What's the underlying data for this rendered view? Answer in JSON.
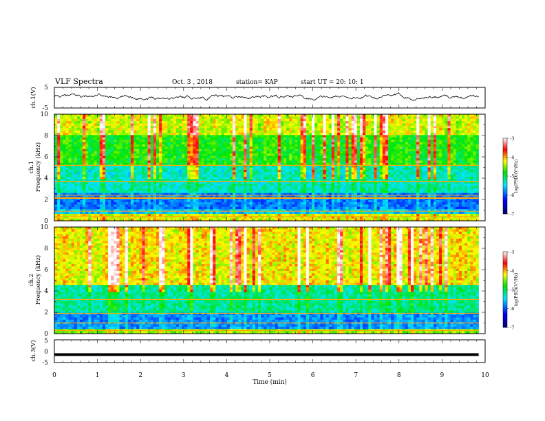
{
  "header": {
    "title": "VLF Spectra",
    "date": "Oct. 3 , 2018",
    "station": "station= KAP",
    "start": "start  UT =   20: 10: 1"
  },
  "chart_data": [
    {
      "type": "line",
      "panel": "ch1-waveform",
      "ylabel": "ch.1(V)",
      "ylim": [
        -5,
        5
      ],
      "yticks": [
        "5",
        "-5"
      ],
      "xlim": [
        0,
        10
      ],
      "description_values": {
        "baseline": 0.5,
        "range": [
          -2,
          2
        ]
      }
    },
    {
      "type": "heatmap",
      "panel": "ch1-spectrogram",
      "ylabel": "ch.1\nFrequency (kHz)",
      "ylim": [
        0,
        10
      ],
      "yticks": [
        "0",
        "2",
        "4",
        "6",
        "8",
        "10"
      ],
      "xlim": [
        0,
        10
      ],
      "data_end_min": 9.85,
      "colorbar": {
        "label": "log(PSD)(V²/Hz)",
        "range": [
          -7,
          -3
        ],
        "ticks": [
          "-3",
          "-4",
          "-5",
          "-6",
          "-7"
        ]
      },
      "levels_by_freq_khz": [
        {
          "f": [
            0,
            0.6
          ],
          "v": -4.3
        },
        {
          "f": [
            0.6,
            1.0
          ],
          "v": -5.6
        },
        {
          "f": [
            1.0,
            2.6
          ],
          "v": -5.9
        },
        {
          "f": [
            2.6,
            5.2
          ],
          "v": -5.3
        },
        {
          "f": [
            5.2,
            8.0
          ],
          "v": -4.8
        },
        {
          "f": [
            8.0,
            10
          ],
          "v": -4.3
        }
      ],
      "lines_khz": [
        0.4,
        0.9,
        2.1,
        2.2,
        2.4,
        3.7,
        5.2
      ]
    },
    {
      "type": "heatmap",
      "panel": "ch2-spectrogram",
      "ylabel": "ch.2\nFrequency (kHz)",
      "ylim": [
        0,
        10
      ],
      "yticks": [
        "0",
        "2",
        "4",
        "6",
        "8",
        "10"
      ],
      "xlim": [
        0,
        10
      ],
      "data_end_min": 9.85,
      "colorbar": {
        "label": "log(PSD)(V²/Hz)",
        "range": [
          -7,
          -3
        ],
        "ticks": [
          "-3",
          "-4",
          "-5",
          "-6",
          "-7"
        ]
      },
      "levels_by_freq_khz": [
        {
          "f": [
            0,
            0.4
          ],
          "v": -4.5
        },
        {
          "f": [
            0.4,
            2.0
          ],
          "v": -5.8
        },
        {
          "f": [
            2.0,
            4.5
          ],
          "v": -5.2
        },
        {
          "f": [
            4.5,
            10
          ],
          "v": -4.2
        }
      ],
      "lines_khz": [
        0.3,
        1.0,
        1.9,
        3.2
      ]
    },
    {
      "type": "line",
      "panel": "ch3-waveform",
      "ylabel": "ch.3(V)",
      "ylim": [
        -5,
        5
      ],
      "yticks": [
        "5",
        "0",
        "-5"
      ],
      "xlim": [
        0,
        10
      ],
      "values_constant": -1.5
    }
  ],
  "xaxis": {
    "label": "Time  (min)",
    "ticks": [
      "0",
      "1",
      "2",
      "3",
      "4",
      "5",
      "6",
      "7",
      "8",
      "9",
      "10"
    ]
  },
  "colors": {
    "axis": "#000000",
    "waveform": "#000000"
  }
}
